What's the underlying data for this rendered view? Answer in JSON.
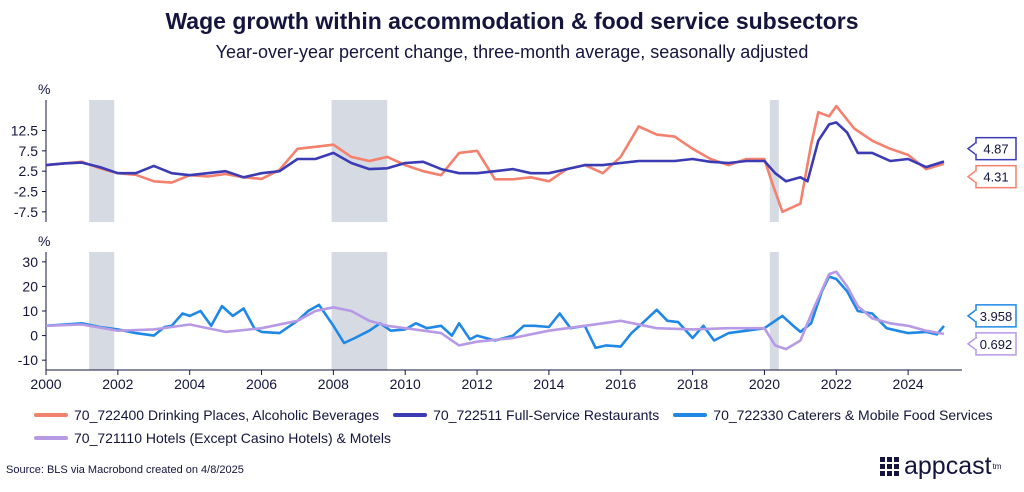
{
  "title": "Wage growth within accommodation & food service subsectors",
  "subtitle": "Year-over-year percent change, three-month average, seasonally adjusted",
  "source": "Source: BLS via Macrobond created on 4/8/2025",
  "logo": {
    "text": "appcast",
    "mark": "tm",
    "icon": "grid-dots-icon"
  },
  "colors": {
    "drinking": "#f4806e",
    "full_service": "#3b3bb3",
    "caterers": "#1f88e5",
    "hotels": "#b79ae6",
    "recession": "#d6dbe3"
  },
  "chart_data": [
    {
      "type": "line",
      "ylabel": "%",
      "ylim": [
        -10,
        20
      ],
      "y_ticks": [
        "12.5",
        "7.5",
        "2.5",
        "-2.5",
        "-7.5"
      ],
      "y_tick_values": [
        12.5,
        7.5,
        2.5,
        -2.5,
        -7.5
      ],
      "xlim": [
        2000,
        2025.5
      ],
      "recessions": [
        [
          2001.2,
          2001.9
        ],
        [
          2007.95,
          2009.5
        ],
        [
          2020.15,
          2020.4
        ]
      ],
      "series": [
        {
          "name": "70_722400 Drinking Places, Alcoholic Beverages",
          "key": "drinking",
          "end_label": "4.31",
          "points": [
            [
              2000,
              4.0
            ],
            [
              2000.5,
              4.4
            ],
            [
              2001,
              4.8
            ],
            [
              2001.5,
              3.2
            ],
            [
              2002,
              2.0
            ],
            [
              2002.5,
              1.6
            ],
            [
              2003,
              0.0
            ],
            [
              2003.5,
              -0.3
            ],
            [
              2004,
              1.5
            ],
            [
              2004.5,
              1.2
            ],
            [
              2005,
              1.8
            ],
            [
              2005.5,
              1.0
            ],
            [
              2006,
              0.6
            ],
            [
              2006.5,
              2.8
            ],
            [
              2007,
              8.0
            ],
            [
              2007.5,
              8.5
            ],
            [
              2008,
              9.0
            ],
            [
              2008.5,
              6.0
            ],
            [
              2009,
              5.0
            ],
            [
              2009.5,
              6.0
            ],
            [
              2010,
              4.0
            ],
            [
              2010.5,
              2.5
            ],
            [
              2011,
              1.5
            ],
            [
              2011.5,
              7.0
            ],
            [
              2012,
              7.5
            ],
            [
              2012.5,
              0.5
            ],
            [
              2013,
              0.5
            ],
            [
              2013.5,
              1.0
            ],
            [
              2014,
              0.0
            ],
            [
              2014.5,
              3.0
            ],
            [
              2015,
              4.0
            ],
            [
              2015.5,
              2.0
            ],
            [
              2016,
              6.0
            ],
            [
              2016.5,
              13.5
            ],
            [
              2017,
              11.5
            ],
            [
              2017.5,
              11.0
            ],
            [
              2018,
              8.0
            ],
            [
              2018.5,
              5.5
            ],
            [
              2019,
              4.0
            ],
            [
              2019.5,
              5.5
            ],
            [
              2020,
              5.5
            ],
            [
              2020.2,
              0.0
            ],
            [
              2020.5,
              -7.5
            ],
            [
              2021,
              -5.5
            ],
            [
              2021.3,
              9.0
            ],
            [
              2021.5,
              17.0
            ],
            [
              2021.8,
              16.0
            ],
            [
              2022,
              18.5
            ],
            [
              2022.5,
              13.0
            ],
            [
              2023,
              10.0
            ],
            [
              2023.5,
              8.0
            ],
            [
              2024,
              6.5
            ],
            [
              2024.5,
              3.0
            ],
            [
              2025,
              4.31
            ]
          ]
        },
        {
          "name": "70_722511 Full-Service Restaurants",
          "key": "full_service",
          "end_label": "4.87",
          "points": [
            [
              2000,
              4.0
            ],
            [
              2000.5,
              4.4
            ],
            [
              2001,
              4.6
            ],
            [
              2001.5,
              3.5
            ],
            [
              2002,
              2.0
            ],
            [
              2002.5,
              2.0
            ],
            [
              2003,
              3.8
            ],
            [
              2003.5,
              2.0
            ],
            [
              2004,
              1.5
            ],
            [
              2004.5,
              2.0
            ],
            [
              2005,
              2.5
            ],
            [
              2005.5,
              1.0
            ],
            [
              2006,
              2.0
            ],
            [
              2006.5,
              2.5
            ],
            [
              2007,
              5.5
            ],
            [
              2007.5,
              5.5
            ],
            [
              2008,
              7.0
            ],
            [
              2008.5,
              4.5
            ],
            [
              2009,
              3.0
            ],
            [
              2009.5,
              3.2
            ],
            [
              2010,
              4.5
            ],
            [
              2010.5,
              4.8
            ],
            [
              2011,
              3.0
            ],
            [
              2011.5,
              2.0
            ],
            [
              2012,
              2.0
            ],
            [
              2012.5,
              2.5
            ],
            [
              2013,
              3.0
            ],
            [
              2013.5,
              2.0
            ],
            [
              2014,
              2.0
            ],
            [
              2014.5,
              3.0
            ],
            [
              2015,
              4.0
            ],
            [
              2015.5,
              4.0
            ],
            [
              2016,
              4.5
            ],
            [
              2016.5,
              5.0
            ],
            [
              2017,
              5.0
            ],
            [
              2017.5,
              5.0
            ],
            [
              2018,
              5.5
            ],
            [
              2018.5,
              4.8
            ],
            [
              2019,
              4.5
            ],
            [
              2019.5,
              5.0
            ],
            [
              2020,
              5.0
            ],
            [
              2020.3,
              2.0
            ],
            [
              2020.6,
              0.0
            ],
            [
              2021,
              1.0
            ],
            [
              2021.2,
              0.0
            ],
            [
              2021.5,
              10.0
            ],
            [
              2021.8,
              14.0
            ],
            [
              2022,
              14.5
            ],
            [
              2022.3,
              12.0
            ],
            [
              2022.6,
              7.0
            ],
            [
              2023,
              7.0
            ],
            [
              2023.5,
              5.0
            ],
            [
              2024,
              5.5
            ],
            [
              2024.5,
              3.5
            ],
            [
              2025,
              4.87
            ]
          ]
        }
      ]
    },
    {
      "type": "line",
      "ylabel": "%",
      "ylim": [
        -14,
        34
      ],
      "y_ticks": [
        "30",
        "20",
        "10",
        "0",
        "-10"
      ],
      "y_tick_values": [
        30,
        20,
        10,
        0,
        -10
      ],
      "xlim": [
        2000,
        2025.5
      ],
      "x_ticks": [
        "2000",
        "2002",
        "2004",
        "2006",
        "2008",
        "2010",
        "2012",
        "2014",
        "2016",
        "2018",
        "2020",
        "2022",
        "2024"
      ],
      "x_tick_values": [
        2000,
        2002,
        2004,
        2006,
        2008,
        2010,
        2012,
        2014,
        2016,
        2018,
        2020,
        2022,
        2024
      ],
      "recessions": [
        [
          2001.2,
          2001.9
        ],
        [
          2007.95,
          2009.5
        ],
        [
          2020.15,
          2020.4
        ]
      ],
      "series": [
        {
          "name": "70_722330 Caterers & Mobile Food Services",
          "key": "caterers",
          "end_label": "3.958",
          "points": [
            [
              2000,
              4.0
            ],
            [
              2000.5,
              4.5
            ],
            [
              2001,
              5.0
            ],
            [
              2001.5,
              3.5
            ],
            [
              2002,
              2.5
            ],
            [
              2002.5,
              1.0
            ],
            [
              2003,
              0.0
            ],
            [
              2003.3,
              3.5
            ],
            [
              2003.5,
              4.0
            ],
            [
              2003.8,
              9.0
            ],
            [
              2004,
              8.0
            ],
            [
              2004.3,
              10.0
            ],
            [
              2004.6,
              4.0
            ],
            [
              2004.9,
              12.0
            ],
            [
              2005.2,
              8.0
            ],
            [
              2005.5,
              11.0
            ],
            [
              2005.8,
              3.0
            ],
            [
              2006,
              1.5
            ],
            [
              2006.5,
              1.0
            ],
            [
              2007,
              6.0
            ],
            [
              2007.3,
              10.0
            ],
            [
              2007.6,
              12.5
            ],
            [
              2008,
              4.0
            ],
            [
              2008.3,
              -3.0
            ],
            [
              2008.6,
              -1.0
            ],
            [
              2009,
              2.0
            ],
            [
              2009.3,
              5.0
            ],
            [
              2009.6,
              2.0
            ],
            [
              2010,
              2.5
            ],
            [
              2010.3,
              5.0
            ],
            [
              2010.6,
              3.0
            ],
            [
              2011,
              4.0
            ],
            [
              2011.3,
              0.0
            ],
            [
              2011.5,
              5.0
            ],
            [
              2011.8,
              -1.5
            ],
            [
              2012,
              0.0
            ],
            [
              2012.5,
              -2.0
            ],
            [
              2013,
              0.0
            ],
            [
              2013.3,
              4.0
            ],
            [
              2013.6,
              4.0
            ],
            [
              2014,
              3.5
            ],
            [
              2014.3,
              9.0
            ],
            [
              2014.6,
              3.0
            ],
            [
              2015,
              4.0
            ],
            [
              2015.3,
              -5.0
            ],
            [
              2015.6,
              -4.0
            ],
            [
              2016,
              -4.5
            ],
            [
              2016.3,
              1.0
            ],
            [
              2016.6,
              5.0
            ],
            [
              2017,
              10.5
            ],
            [
              2017.3,
              6.0
            ],
            [
              2017.6,
              5.5
            ],
            [
              2018,
              -1.0
            ],
            [
              2018.3,
              4.0
            ],
            [
              2018.6,
              -2.0
            ],
            [
              2019,
              1.0
            ],
            [
              2019.5,
              2.0
            ],
            [
              2020,
              3.0
            ],
            [
              2020.3,
              6.0
            ],
            [
              2020.5,
              8.0
            ],
            [
              2020.8,
              4.0
            ],
            [
              2021,
              1.5
            ],
            [
              2021.3,
              5.0
            ],
            [
              2021.6,
              18.0
            ],
            [
              2021.8,
              24.0
            ],
            [
              2022,
              23.0
            ],
            [
              2022.3,
              18.0
            ],
            [
              2022.6,
              10.0
            ],
            [
              2023,
              9.0
            ],
            [
              2023.4,
              3.0
            ],
            [
              2023.7,
              2.0
            ],
            [
              2024,
              1.0
            ],
            [
              2024.5,
              1.5
            ],
            [
              2024.8,
              0.5
            ],
            [
              2025,
              3.958
            ]
          ]
        },
        {
          "name": "70_721110 Hotels (Except Casino Hotels) & Motels",
          "key": "hotels",
          "end_label": "0.692",
          "points": [
            [
              2000,
              4.0
            ],
            [
              2001,
              4.5
            ],
            [
              2002,
              2.0
            ],
            [
              2003,
              2.5
            ],
            [
              2004,
              4.5
            ],
            [
              2005,
              1.5
            ],
            [
              2006,
              3.0
            ],
            [
              2007,
              6.0
            ],
            [
              2007.5,
              10.0
            ],
            [
              2008,
              11.5
            ],
            [
              2008.5,
              10.0
            ],
            [
              2009,
              6.0
            ],
            [
              2009.5,
              4.0
            ],
            [
              2010,
              3.0
            ],
            [
              2011,
              1.0
            ],
            [
              2011.5,
              -4.0
            ],
            [
              2012,
              -2.5
            ],
            [
              2013,
              -1.0
            ],
            [
              2014,
              2.0
            ],
            [
              2015,
              4.0
            ],
            [
              2016,
              6.0
            ],
            [
              2017,
              3.0
            ],
            [
              2018,
              2.5
            ],
            [
              2019,
              3.0
            ],
            [
              2020,
              3.0
            ],
            [
              2020.3,
              -4.0
            ],
            [
              2020.6,
              -5.5
            ],
            [
              2021,
              -2.0
            ],
            [
              2021.4,
              12.0
            ],
            [
              2021.8,
              25.0
            ],
            [
              2022,
              26.0
            ],
            [
              2022.3,
              20.0
            ],
            [
              2022.6,
              12.0
            ],
            [
              2023,
              7.0
            ],
            [
              2023.5,
              5.0
            ],
            [
              2024,
              4.0
            ],
            [
              2024.5,
              2.0
            ],
            [
              2025,
              0.692
            ]
          ]
        }
      ]
    }
  ]
}
